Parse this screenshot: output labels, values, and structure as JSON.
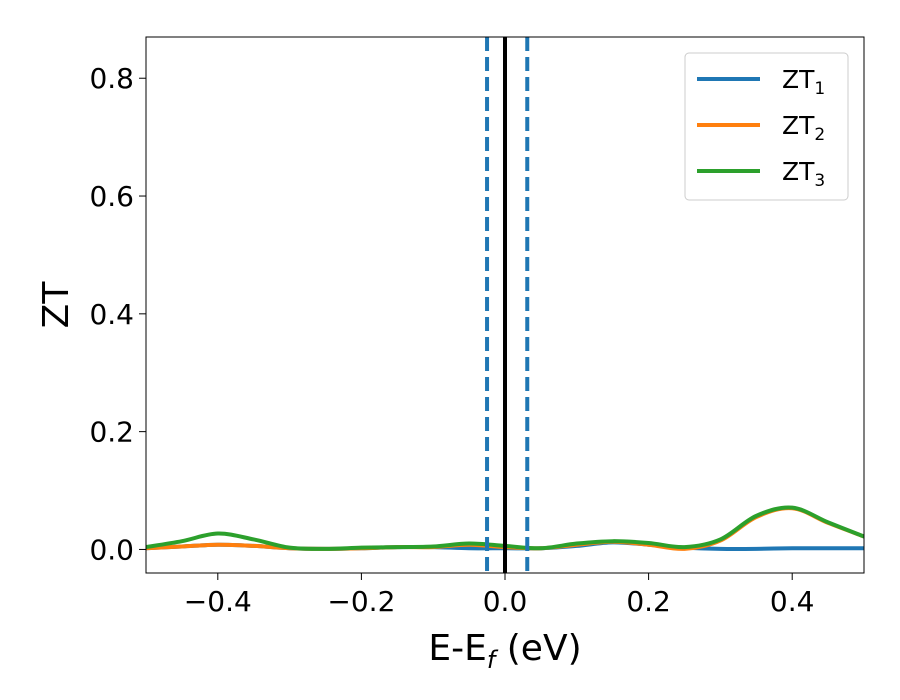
{
  "chart_data": {
    "type": "line",
    "xlabel": "E-E",
    "xlabel_sub": "f",
    "xlabel_unit": " (eV)",
    "ylabel": "ZT",
    "xlim": [
      -0.5,
      0.5
    ],
    "ylim": [
      -0.04,
      0.87
    ],
    "x_ticks": [
      -0.4,
      -0.2,
      0.0,
      0.2,
      0.4
    ],
    "x_tick_labels": [
      "−0.4",
      "−0.2",
      "0.0",
      "0.2",
      "0.4"
    ],
    "y_ticks": [
      0.0,
      0.2,
      0.4,
      0.6,
      0.8
    ],
    "y_tick_labels": [
      "0.0",
      "0.2",
      "0.4",
      "0.6",
      "0.8"
    ],
    "legend_position": "top-right",
    "vlines": [
      {
        "x": -0.025,
        "style": "dashed",
        "color": "#1f77b4"
      },
      {
        "x": 0.031,
        "style": "dashed",
        "color": "#1f77b4"
      },
      {
        "x": 0.0,
        "style": "solid",
        "color": "#000000"
      }
    ],
    "x": [
      -0.5,
      -0.45,
      -0.4,
      -0.35,
      -0.3,
      -0.25,
      -0.2,
      -0.15,
      -0.1,
      -0.05,
      0.0,
      0.05,
      0.1,
      0.15,
      0.2,
      0.25,
      0.3,
      0.35,
      0.4,
      0.45,
      0.5
    ],
    "series": [
      {
        "name": "ZT",
        "name_sub": "1",
        "color": "#1f77b4",
        "values": [
          0.002,
          0.005,
          0.008,
          0.006,
          0.002,
          0.001,
          0.002,
          0.004,
          0.004,
          0.002,
          0.002,
          0.002,
          0.006,
          0.012,
          0.008,
          0.003,
          0.001,
          0.001,
          0.002,
          0.002,
          0.002
        ]
      },
      {
        "name": "ZT",
        "name_sub": "2",
        "color": "#ff7f0e",
        "values": [
          0.002,
          0.005,
          0.008,
          0.006,
          0.002,
          0.001,
          0.002,
          0.004,
          0.004,
          0.008,
          0.004,
          0.002,
          0.008,
          0.013,
          0.008,
          0.001,
          0.015,
          0.055,
          0.07,
          0.045,
          0.022
        ]
      },
      {
        "name": "ZT",
        "name_sub": "3",
        "color": "#2ca02c",
        "values": [
          0.004,
          0.014,
          0.027,
          0.017,
          0.003,
          0.001,
          0.003,
          0.004,
          0.005,
          0.01,
          0.006,
          0.002,
          0.01,
          0.014,
          0.011,
          0.004,
          0.017,
          0.057,
          0.071,
          0.046,
          0.022
        ]
      }
    ]
  }
}
